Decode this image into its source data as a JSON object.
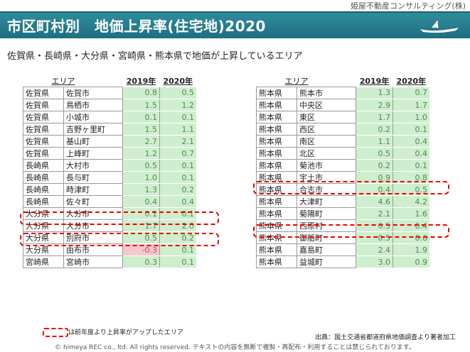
{
  "company": "姫屋不動産コンサルティング(株)",
  "title": "市区町村別　地価上昇率(住宅地)2020",
  "subtitle": "佐賀県・長崎県・大分県・宮崎県・熊本県で地価が上昇しているエリア",
  "headers": {
    "area": "エリア",
    "y2019": "2019年",
    "y2020": "2020年"
  },
  "left_rows": [
    {
      "pref": "佐賀県",
      "city": "佐賀市",
      "v2019": "0.8",
      "v2020": "0.5"
    },
    {
      "pref": "佐賀県",
      "city": "鳥栖市",
      "v2019": "1.5",
      "v2020": "1.2"
    },
    {
      "pref": "佐賀県",
      "city": "小城市",
      "v2019": "0.1",
      "v2020": "0.1"
    },
    {
      "pref": "佐賀県",
      "city": "吉野ヶ里町",
      "v2019": "1.5",
      "v2020": "1.1"
    },
    {
      "pref": "佐賀県",
      "city": "基山町",
      "v2019": "2.7",
      "v2020": "2.1"
    },
    {
      "pref": "佐賀県",
      "city": "上峰町",
      "v2019": "1.2",
      "v2020": "0.7"
    },
    {
      "pref": "長崎県",
      "city": "大村市",
      "v2019": "0.5",
      "v2020": "0.1"
    },
    {
      "pref": "長崎県",
      "city": "長与町",
      "v2019": "1.0",
      "v2020": "0.1"
    },
    {
      "pref": "長崎県",
      "city": "時津町",
      "v2019": "1.3",
      "v2020": "0.2"
    },
    {
      "pref": "長崎県",
      "city": "佐々町",
      "v2019": "0.4",
      "v2020": "0.4"
    },
    {
      "pref": "大分県",
      "city": "大分市",
      "v2019": "0.1",
      "v2020": "0.1"
    },
    {
      "pref": "大分県",
      "city": "大分市",
      "v2019": "1.7",
      "v2020": "2.0"
    },
    {
      "pref": "大分県",
      "city": "別府市",
      "v2019": "0.5",
      "v2020": "0.2"
    },
    {
      "pref": "大分県",
      "city": "由布市",
      "v2019": "-0.3",
      "v2020": "0.1"
    },
    {
      "pref": "宮崎県",
      "city": "宮崎市",
      "v2019": "0.3",
      "v2020": "0.1"
    }
  ],
  "right_rows": [
    {
      "pref": "熊本県",
      "city": "熊本市",
      "v2019": "1.3",
      "v2020": "0.7"
    },
    {
      "pref": "熊本県",
      "city": "中央区",
      "v2019": "2.9",
      "v2020": "1.7"
    },
    {
      "pref": "熊本県",
      "city": "東区",
      "v2019": "1.7",
      "v2020": "1.0"
    },
    {
      "pref": "熊本県",
      "city": "西区",
      "v2019": "0.2",
      "v2020": "0.1"
    },
    {
      "pref": "熊本県",
      "city": "南区",
      "v2019": "1.1",
      "v2020": "0.4"
    },
    {
      "pref": "熊本県",
      "city": "北区",
      "v2019": "0.5",
      "v2020": "0.4"
    },
    {
      "pref": "熊本県",
      "city": "菊池市",
      "v2019": "0.2",
      "v2020": "0.1"
    },
    {
      "pref": "熊本県",
      "city": "宇土市",
      "v2019": "0.9",
      "v2020": "0.8"
    },
    {
      "pref": "熊本県",
      "city": "合志市",
      "v2019": "0.4",
      "v2020": "0.5"
    },
    {
      "pref": "熊本県",
      "city": "大津町",
      "v2019": "4.6",
      "v2020": "4.2"
    },
    {
      "pref": "熊本県",
      "city": "菊陽町",
      "v2019": "2.1",
      "v2020": "1.6"
    },
    {
      "pref": "熊本県",
      "city": "西原村",
      "v2019": "0.5",
      "v2020": "0.4"
    },
    {
      "pref": "熊本県",
      "city": "御船町",
      "v2019": "0.5",
      "v2020": "0.6"
    },
    {
      "pref": "熊本県",
      "city": "嘉島町",
      "v2019": "2.4",
      "v2020": "1.9"
    },
    {
      "pref": "熊本県",
      "city": "益城町",
      "v2019": "3.0",
      "v2020": "0.9"
    }
  ],
  "legend": "は前年度より上昇率がアップしたエリア",
  "source": "出典：国土交通省都道府県地価調査より著者加工",
  "copyright": "© himeya REC co., ltd. All rights reserved.  テキストの内容を無断で複製・再配布・利用することは禁じられております。",
  "colors": {
    "title_bar": "#1e6f80",
    "value_cell": "#cfeecf",
    "negative_cell": "#f7c7cf",
    "highlight": "#e00000"
  }
}
